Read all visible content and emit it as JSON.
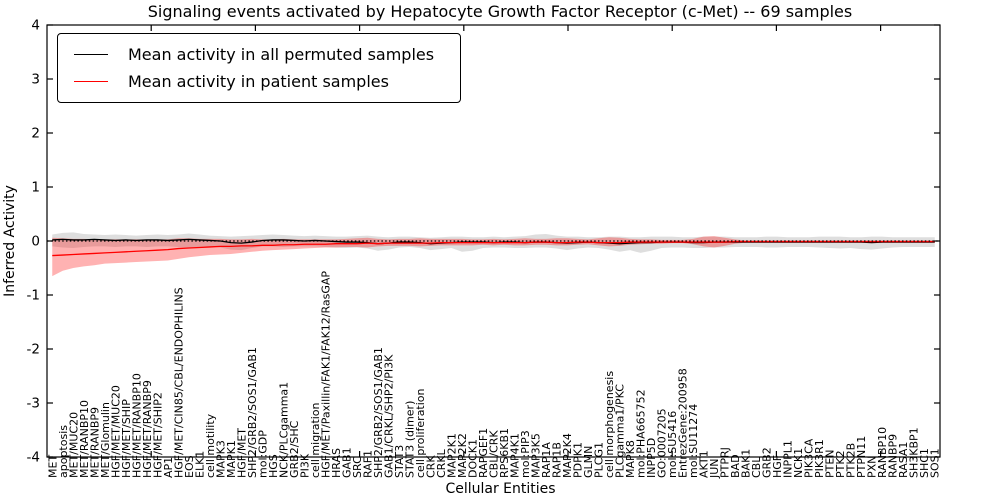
{
  "chart_data": {
    "type": "line",
    "title": "Signaling events activated by Hepatocyte Growth Factor Receptor (c-Met) -- 69 samples",
    "xlabel": "Cellular Entities",
    "ylabel": "Inferred Activity",
    "ylim": [
      -4,
      4
    ],
    "ytick_labels": [
      "4",
      "3",
      "2",
      "1",
      "0",
      "-1",
      "-2",
      "-3",
      "-4"
    ],
    "grid": false,
    "legend_position": "upper-left",
    "frame_color": "#000000",
    "zero_line": {
      "style": "dotted",
      "color": "#000000",
      "y": 0
    },
    "categories": [
      "MET",
      "apoptosis",
      "MET/MUC20",
      "MET/RANBP10",
      "MET/RANBP9",
      "MET/Glomulin",
      "HGF/MET/MUC20",
      "HGF/MET/SHIP",
      "HGF/MET/RANBP10",
      "HGF/MET/RANBP9",
      "HGF/MET/SHIP2",
      "AP1",
      "HGF/MET/CIN85/CBL/ENDOPHILINS",
      "EOS",
      "ELK1",
      "cell motility",
      "MAPK3",
      "MAPK1",
      "HGF/MET",
      "SHP2/GRB2/SOS1/GAB1",
      "mol:GDP",
      "HGS",
      "NCK/PLCgamma1",
      "GRB2/SHC",
      "PI3K",
      "cell migration",
      "HGF/MET/Paxillin/FAK1/FAK12/RasGAP",
      "HRAS",
      "GAB1",
      "SRC",
      "RAF1",
      "SHP2/GRB2/SOS1/GAB1",
      "GAB1/CRKL/SHP2/PI3K",
      "STAT3",
      "STAT3 (dimer)",
      "cell proliferation",
      "CRK",
      "CRKL",
      "MAP2K1",
      "MAP2K2",
      "DOCK1",
      "RAPGEF1",
      "CBL/CRK",
      "RPS6KB1",
      "MAP4K1",
      "mol:PIP3",
      "MAP3K5",
      "RAP1A",
      "RAP1B",
      "MAP2K4",
      "PDPK1",
      "GLMN",
      "PLCG1",
      "cell morphogenesis",
      "PLCgamma1/PKC",
      "MAPK8",
      "mol:PHA665752",
      "INPP5D",
      "GO:0007205",
      "mol:SU5416",
      "EntrezGene:200958",
      "mol:SU11274",
      "AKT1",
      "JUN",
      "PTPRJ",
      "BAD",
      "BAK1",
      "CBL",
      "GRB2",
      "HGF",
      "INPPL1",
      "NCK1",
      "PIK3CA",
      "PIK3R1",
      "PTEN",
      "PTK2",
      "PTK2B",
      "PTPN11",
      "PXN",
      "RANBP10",
      "RANBP9",
      "RASA1",
      "SH3KBP1",
      "SHC1",
      "SOS1"
    ],
    "series": [
      {
        "name": "Mean activity in all permuted samples",
        "color": "#000000",
        "band_color": "#000000",
        "band_opacity": 0.13,
        "values": [
          0.02,
          0.03,
          0.02,
          0.02,
          0.03,
          0.02,
          0.01,
          0.02,
          0.01,
          0.02,
          0.02,
          0.01,
          0.02,
          0.03,
          0.02,
          0.01,
          0.0,
          -0.03,
          -0.04,
          -0.02,
          0.01,
          0.02,
          0.02,
          0.01,
          0.0,
          0.01,
          0.0,
          -0.01,
          -0.02,
          -0.02,
          -0.03,
          -0.05,
          -0.04,
          -0.02,
          -0.02,
          -0.03,
          -0.05,
          -0.04,
          -0.03,
          -0.02,
          -0.02,
          -0.02,
          -0.03,
          -0.02,
          -0.02,
          -0.03,
          -0.02,
          -0.02,
          -0.03,
          -0.04,
          -0.03,
          -0.02,
          -0.03,
          -0.04,
          -0.05,
          -0.04,
          -0.03,
          -0.03,
          -0.02,
          -0.02,
          -0.02,
          -0.03,
          -0.03,
          -0.02,
          -0.02,
          -0.02,
          -0.02,
          -0.02,
          -0.02,
          -0.02,
          -0.02,
          -0.02,
          -0.02,
          -0.02,
          -0.02,
          -0.02,
          -0.02,
          -0.02,
          -0.03,
          -0.02,
          -0.02,
          -0.02,
          -0.02,
          -0.02,
          -0.02
        ],
        "band_high": [
          0.12,
          0.15,
          0.16,
          0.13,
          0.12,
          0.11,
          0.12,
          0.11,
          0.1,
          0.11,
          0.12,
          0.11,
          0.12,
          0.14,
          0.12,
          0.1,
          0.09,
          0.08,
          0.09,
          0.1,
          0.11,
          0.12,
          0.11,
          0.1,
          0.09,
          0.1,
          0.09,
          0.08,
          0.08,
          0.09,
          0.1,
          0.08,
          0.07,
          0.08,
          0.08,
          0.07,
          0.06,
          0.07,
          0.08,
          0.08,
          0.07,
          0.07,
          0.08,
          0.07,
          0.08,
          0.09,
          0.12,
          0.13,
          0.1,
          0.08,
          0.08,
          0.07,
          0.07,
          0.08,
          0.08,
          0.07,
          0.07,
          0.08,
          0.08,
          0.08,
          0.07,
          0.07,
          0.08,
          0.08,
          0.08,
          0.07,
          0.07,
          0.07,
          0.08,
          0.08,
          0.07,
          0.07,
          0.07,
          0.08,
          0.08,
          0.08,
          0.07,
          0.07,
          0.08,
          0.08,
          0.07,
          0.07,
          0.07,
          0.07,
          0.07
        ],
        "band_low": [
          -0.1,
          -0.12,
          -0.13,
          -0.11,
          -0.1,
          -0.1,
          -0.11,
          -0.1,
          -0.1,
          -0.11,
          -0.1,
          -0.1,
          -0.11,
          -0.12,
          -0.11,
          -0.1,
          -0.12,
          -0.16,
          -0.17,
          -0.13,
          -0.1,
          -0.1,
          -0.11,
          -0.1,
          -0.1,
          -0.1,
          -0.11,
          -0.12,
          -0.13,
          -0.12,
          -0.14,
          -0.18,
          -0.16,
          -0.12,
          -0.11,
          -0.13,
          -0.17,
          -0.15,
          -0.13,
          -0.2,
          -0.18,
          -0.13,
          -0.12,
          -0.12,
          -0.13,
          -0.13,
          -0.12,
          -0.12,
          -0.14,
          -0.17,
          -0.14,
          -0.12,
          -0.13,
          -0.16,
          -0.2,
          -0.17,
          -0.22,
          -0.18,
          -0.13,
          -0.12,
          -0.12,
          -0.13,
          -0.13,
          -0.12,
          -0.12,
          -0.11,
          -0.11,
          -0.11,
          -0.12,
          -0.12,
          -0.11,
          -0.11,
          -0.11,
          -0.12,
          -0.13,
          -0.14,
          -0.13,
          -0.15,
          -0.16,
          -0.14,
          -0.12,
          -0.11,
          -0.11,
          -0.11,
          -0.11
        ]
      },
      {
        "name": "Mean activity in patient samples",
        "color": "#ff0000",
        "band_color": "#ff0000",
        "band_opacity": 0.3,
        "values": [
          -0.27,
          -0.26,
          -0.25,
          -0.24,
          -0.23,
          -0.22,
          -0.21,
          -0.2,
          -0.19,
          -0.18,
          -0.17,
          -0.16,
          -0.14,
          -0.13,
          -0.12,
          -0.11,
          -0.1,
          -0.1,
          -0.09,
          -0.09,
          -0.08,
          -0.08,
          -0.07,
          -0.07,
          -0.06,
          -0.06,
          -0.06,
          -0.05,
          -0.05,
          -0.05,
          -0.04,
          -0.05,
          -0.04,
          -0.04,
          -0.04,
          -0.04,
          -0.04,
          -0.03,
          -0.03,
          -0.03,
          -0.03,
          -0.03,
          -0.03,
          -0.03,
          -0.03,
          -0.03,
          -0.02,
          -0.02,
          -0.03,
          -0.03,
          -0.02,
          -0.02,
          -0.03,
          -0.03,
          -0.03,
          -0.02,
          -0.02,
          -0.02,
          -0.02,
          -0.02,
          -0.02,
          -0.02,
          -0.02,
          -0.02,
          -0.02,
          -0.01,
          -0.01,
          -0.01,
          -0.01,
          -0.01,
          -0.01,
          -0.01,
          -0.01,
          -0.01,
          -0.01,
          -0.01,
          -0.01,
          -0.01,
          -0.01,
          -0.01,
          -0.01,
          -0.01,
          -0.01,
          -0.01,
          -0.01
        ],
        "band_high": [
          0.06,
          0.05,
          0.04,
          0.04,
          0.03,
          0.03,
          0.03,
          0.03,
          0.03,
          0.03,
          0.03,
          0.03,
          0.05,
          0.05,
          0.04,
          0.04,
          0.04,
          0.03,
          0.03,
          0.04,
          0.03,
          0.03,
          0.04,
          0.03,
          0.03,
          0.03,
          0.03,
          0.03,
          0.04,
          0.05,
          0.06,
          0.04,
          0.03,
          0.04,
          0.04,
          0.05,
          0.04,
          0.04,
          0.04,
          0.04,
          0.03,
          0.03,
          0.04,
          0.03,
          0.04,
          0.05,
          0.04,
          0.04,
          0.05,
          0.05,
          0.04,
          0.03,
          0.05,
          0.07,
          0.06,
          0.04,
          0.03,
          0.03,
          0.02,
          0.02,
          0.02,
          0.04,
          0.08,
          0.09,
          0.06,
          0.03,
          0.01,
          0.01,
          0.01,
          0.01,
          0.01,
          0.01,
          0.01,
          0.01,
          0.01,
          0.01,
          0.01,
          0.01,
          0.01,
          0.01,
          0.01,
          0.01,
          0.01,
          0.01,
          0.01
        ],
        "band_low": [
          -0.65,
          -0.55,
          -0.5,
          -0.47,
          -0.45,
          -0.42,
          -0.41,
          -0.4,
          -0.39,
          -0.38,
          -0.37,
          -0.36,
          -0.33,
          -0.3,
          -0.28,
          -0.26,
          -0.25,
          -0.24,
          -0.22,
          -0.2,
          -0.18,
          -0.17,
          -0.16,
          -0.15,
          -0.14,
          -0.13,
          -0.12,
          -0.12,
          -0.11,
          -0.11,
          -0.12,
          -0.1,
          -0.09,
          -0.09,
          -0.09,
          -0.1,
          -0.09,
          -0.08,
          -0.08,
          -0.08,
          -0.08,
          -0.07,
          -0.08,
          -0.07,
          -0.08,
          -0.08,
          -0.07,
          -0.07,
          -0.08,
          -0.08,
          -0.07,
          -0.06,
          -0.08,
          -0.1,
          -0.09,
          -0.07,
          -0.06,
          -0.05,
          -0.05,
          -0.04,
          -0.04,
          -0.06,
          -0.1,
          -0.12,
          -0.09,
          -0.05,
          -0.03,
          -0.03,
          -0.03,
          -0.03,
          -0.03,
          -0.03,
          -0.03,
          -0.03,
          -0.03,
          -0.03,
          -0.03,
          -0.03,
          -0.03,
          -0.03,
          -0.03,
          -0.03,
          -0.03,
          -0.03,
          -0.03
        ]
      }
    ]
  }
}
